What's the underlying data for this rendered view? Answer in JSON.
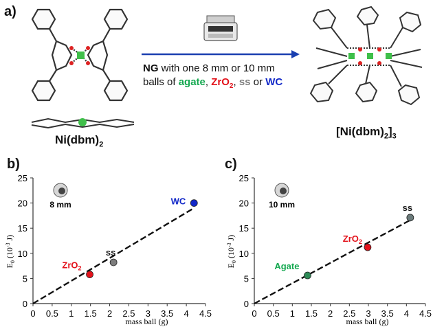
{
  "panels": {
    "a": "a)",
    "b": "b)",
    "c": "c)"
  },
  "reaction": {
    "reactant_main": "Ni(dbm)",
    "reactant_sub": "2",
    "product_main": "[Ni(dbm)",
    "product_sub": "2",
    "product_close": "]",
    "product_sub2": "3",
    "condition": {
      "ng": "NG",
      "line1_rest": " with one 8 mm or 10 mm",
      "line2_start": "balls of ",
      "agate": "agate",
      "comma1": ", ",
      "zro_main": "ZrO",
      "zro_sub": "2",
      "comma2": ", ",
      "ss": "ss",
      "or_text": " or ",
      "wc": "WC"
    }
  },
  "colors": {
    "agate": "#13a84f",
    "zro2": "#e3121b",
    "ss": "#7d7d7d",
    "wc": "#1228c8",
    "arrow": "#1a3fb0"
  },
  "chart_data": [
    {
      "type": "scatter",
      "panel": "b)",
      "ball_size_label": "8 mm",
      "xlabel": "mass ball (g)",
      "ylabel_main": "E",
      "ylabel_sub": "0",
      "ylabel_unit": "(10",
      "ylabel_exp": "-3",
      "ylabel_end": " J)",
      "xlim": [
        0,
        4.5
      ],
      "ylim": [
        0,
        25
      ],
      "xticks": [
        "0",
        "0.5",
        "1",
        "1.5",
        "2",
        "2.5",
        "3",
        "3.5",
        "4",
        "4.5"
      ],
      "yticks": [
        "0",
        "5",
        "10",
        "15",
        "20",
        "25"
      ],
      "points": [
        {
          "label_main": "ZrO",
          "label_sub": "2",
          "x": 1.48,
          "y": 5.8,
          "color": "#e3121b",
          "label_color": "#e3121b"
        },
        {
          "label_main": "ss",
          "label_sub": "",
          "x": 2.1,
          "y": 8.2,
          "color": "#7d7d7d",
          "label_color": "#1a1a1a"
        },
        {
          "label_main": "WC",
          "label_sub": "",
          "x": 4.2,
          "y": 20.0,
          "color": "#1228c8",
          "label_color": "#1228c8"
        }
      ],
      "fit": {
        "x0": 0,
        "y0": 0,
        "x1": 4.2,
        "y1": 19.0
      }
    },
    {
      "type": "scatter",
      "panel": "c)",
      "ball_size_label": "10 mm",
      "xlabel": "mass ball (g)",
      "ylabel_main": "E",
      "ylabel_sub": "0",
      "ylabel_unit": "(10",
      "ylabel_exp": "-3",
      "ylabel_end": " J)",
      "xlim": [
        0,
        4.5
      ],
      "ylim": [
        0,
        25
      ],
      "xticks": [
        "0",
        "0.5",
        "1",
        "1.5",
        "2",
        "2.5",
        "3",
        "3.5",
        "4",
        "4.5"
      ],
      "yticks": [
        "0",
        "5",
        "10",
        "15",
        "20",
        "25"
      ],
      "points": [
        {
          "label_main": "Agate",
          "label_sub": "",
          "x": 1.4,
          "y": 5.6,
          "color": "#2e8b57",
          "label_color": "#13a84f"
        },
        {
          "label_main": "ZrO",
          "label_sub": "2",
          "x": 2.98,
          "y": 11.2,
          "color": "#e3121b",
          "label_color": "#e3121b"
        },
        {
          "label_main": "ss",
          "label_sub": "",
          "x": 4.1,
          "y": 17.1,
          "color": "#6b7b7b",
          "label_color": "#1a1a1a"
        }
      ],
      "fit": {
        "x0": 0,
        "y0": 0,
        "x1": 4.1,
        "y1": 16.6
      }
    }
  ]
}
